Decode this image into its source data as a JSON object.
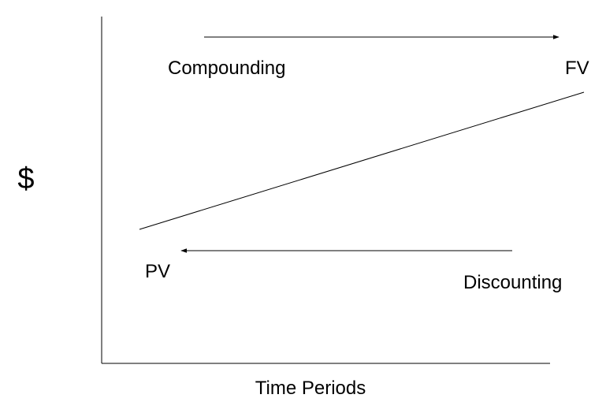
{
  "diagram": {
    "y_axis_label": "$",
    "x_axis_label": "Time Periods",
    "compounding_label": "Compounding",
    "discounting_label": "Discounting",
    "present_value_label": "PV",
    "future_value_label": "FV"
  },
  "colors": {
    "background": "#ffffff",
    "ink": "#000000"
  }
}
